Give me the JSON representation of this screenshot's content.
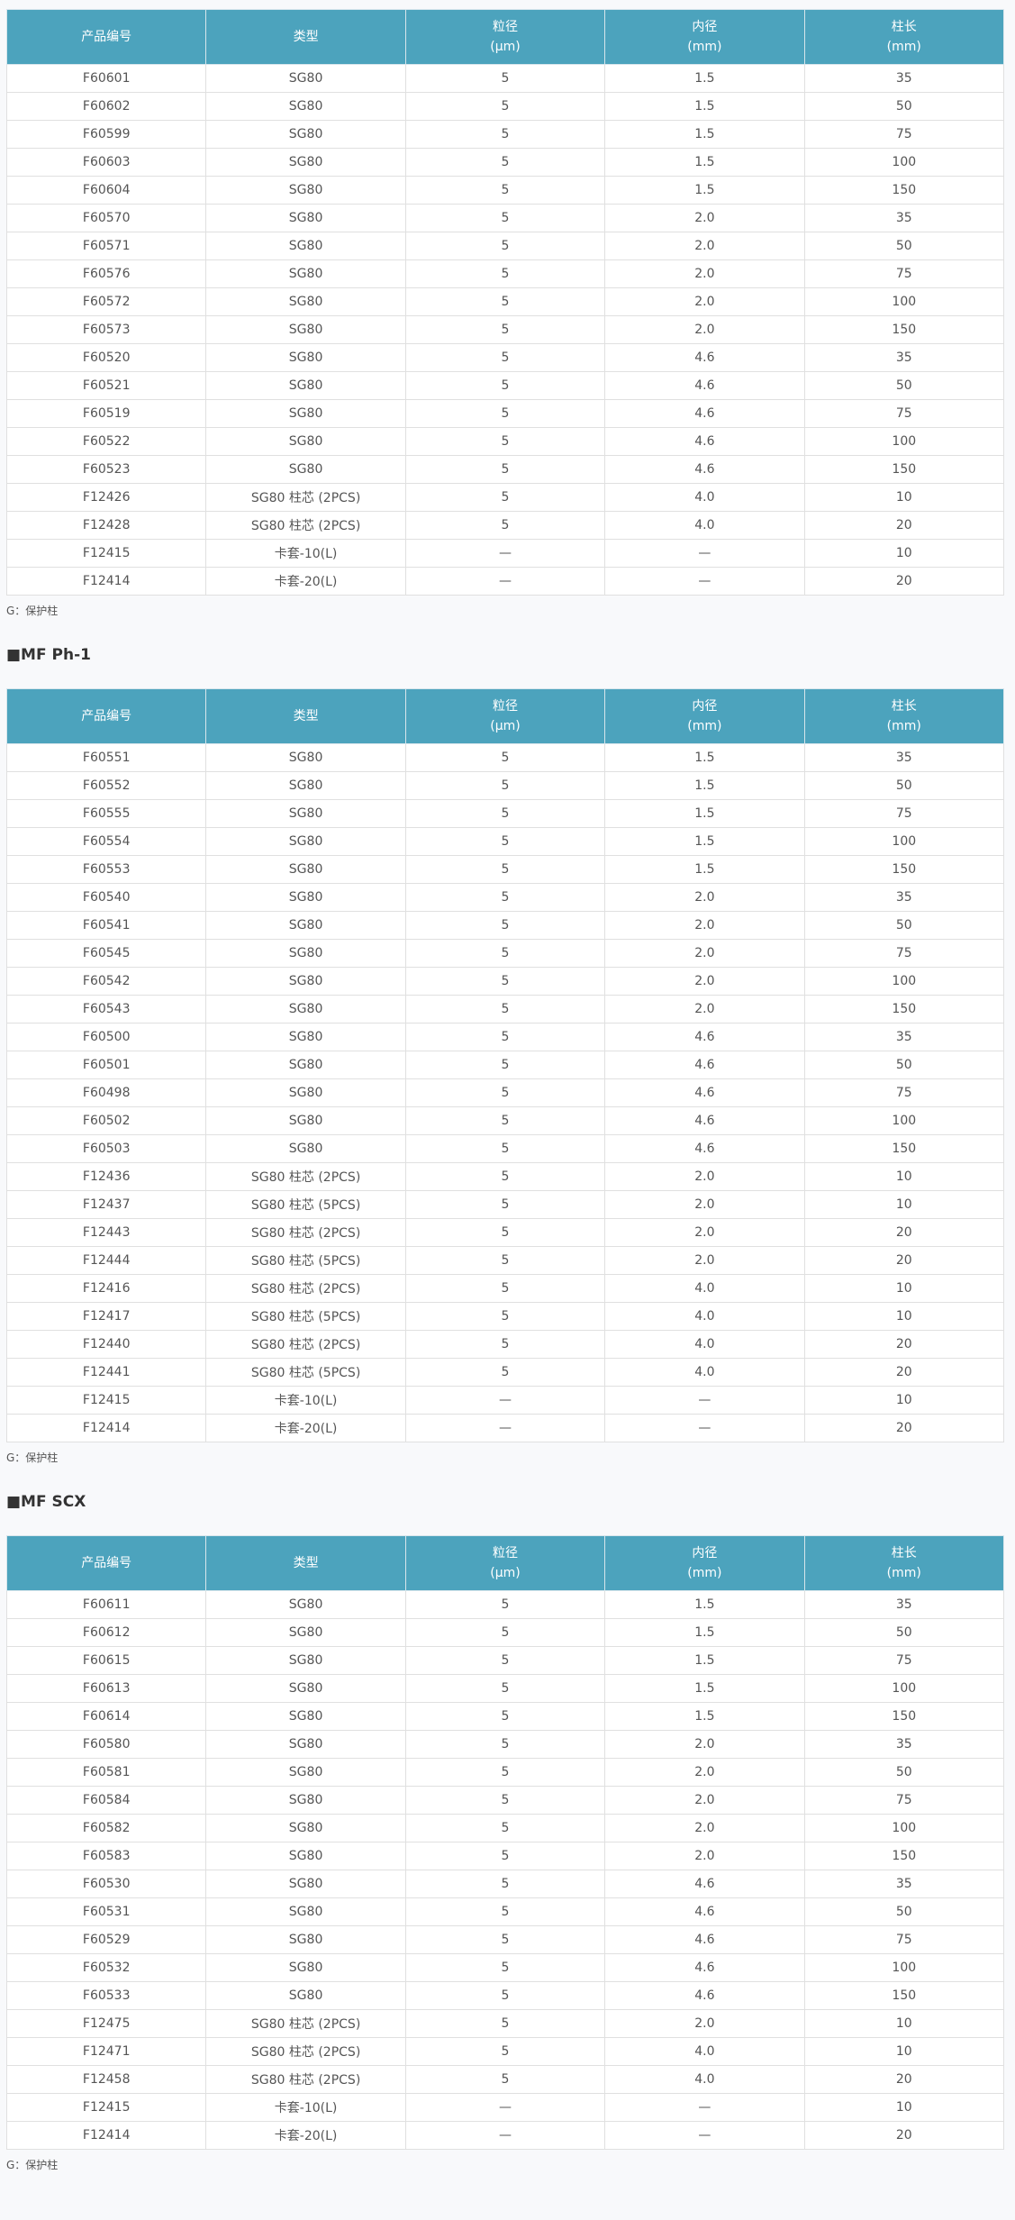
{
  "columns": [
    "产品编号",
    "类型",
    "粒径\n(μm)",
    "内径\n(mm)",
    "柱长\n(mm)"
  ],
  "note": "G：保护柱",
  "colors": {
    "header_bg": "#4ca3bd",
    "page_bg": "#f8f9fb"
  },
  "sections": [
    {
      "heading": "",
      "rows": [
        [
          "F60601",
          "SG80",
          "5",
          "1.5",
          "35"
        ],
        [
          "F60602",
          "SG80",
          "5",
          "1.5",
          "50"
        ],
        [
          "F60599",
          "SG80",
          "5",
          "1.5",
          "75"
        ],
        [
          "F60603",
          "SG80",
          "5",
          "1.5",
          "100"
        ],
        [
          "F60604",
          "SG80",
          "5",
          "1.5",
          "150"
        ],
        [
          "F60570",
          "SG80",
          "5",
          "2.0",
          "35"
        ],
        [
          "F60571",
          "SG80",
          "5",
          "2.0",
          "50"
        ],
        [
          "F60576",
          "SG80",
          "5",
          "2.0",
          "75"
        ],
        [
          "F60572",
          "SG80",
          "5",
          "2.0",
          "100"
        ],
        [
          "F60573",
          "SG80",
          "5",
          "2.0",
          "150"
        ],
        [
          "F60520",
          "SG80",
          "5",
          "4.6",
          "35"
        ],
        [
          "F60521",
          "SG80",
          "5",
          "4.6",
          "50"
        ],
        [
          "F60519",
          "SG80",
          "5",
          "4.6",
          "75"
        ],
        [
          "F60522",
          "SG80",
          "5",
          "4.6",
          "100"
        ],
        [
          "F60523",
          "SG80",
          "5",
          "4.6",
          "150"
        ],
        [
          "F12426",
          "SG80 柱芯 (2PCS)",
          "5",
          "4.0",
          "10"
        ],
        [
          "F12428",
          "SG80 柱芯 (2PCS)",
          "5",
          "4.0",
          "20"
        ],
        [
          "F12415",
          "卡套-10(L)",
          "—",
          "—",
          "10"
        ],
        [
          "F12414",
          "卡套-20(L)",
          "—",
          "—",
          "20"
        ]
      ]
    },
    {
      "heading": "■MF Ph-1",
      "rows": [
        [
          "F60551",
          "SG80",
          "5",
          "1.5",
          "35"
        ],
        [
          "F60552",
          "SG80",
          "5",
          "1.5",
          "50"
        ],
        [
          "F60555",
          "SG80",
          "5",
          "1.5",
          "75"
        ],
        [
          "F60554",
          "SG80",
          "5",
          "1.5",
          "100"
        ],
        [
          "F60553",
          "SG80",
          "5",
          "1.5",
          "150"
        ],
        [
          "F60540",
          "SG80",
          "5",
          "2.0",
          "35"
        ],
        [
          "F60541",
          "SG80",
          "5",
          "2.0",
          "50"
        ],
        [
          "F60545",
          "SG80",
          "5",
          "2.0",
          "75"
        ],
        [
          "F60542",
          "SG80",
          "5",
          "2.0",
          "100"
        ],
        [
          "F60543",
          "SG80",
          "5",
          "2.0",
          "150"
        ],
        [
          "F60500",
          "SG80",
          "5",
          "4.6",
          "35"
        ],
        [
          "F60501",
          "SG80",
          "5",
          "4.6",
          "50"
        ],
        [
          "F60498",
          "SG80",
          "5",
          "4.6",
          "75"
        ],
        [
          "F60502",
          "SG80",
          "5",
          "4.6",
          "100"
        ],
        [
          "F60503",
          "SG80",
          "5",
          "4.6",
          "150"
        ],
        [
          "F12436",
          "SG80 柱芯 (2PCS)",
          "5",
          "2.0",
          "10"
        ],
        [
          "F12437",
          "SG80 柱芯 (5PCS)",
          "5",
          "2.0",
          "10"
        ],
        [
          "F12443",
          "SG80 柱芯 (2PCS)",
          "5",
          "2.0",
          "20"
        ],
        [
          "F12444",
          "SG80 柱芯 (5PCS)",
          "5",
          "2.0",
          "20"
        ],
        [
          "F12416",
          "SG80 柱芯 (2PCS)",
          "5",
          "4.0",
          "10"
        ],
        [
          "F12417",
          "SG80 柱芯 (5PCS)",
          "5",
          "4.0",
          "10"
        ],
        [
          "F12440",
          "SG80 柱芯 (2PCS)",
          "5",
          "4.0",
          "20"
        ],
        [
          "F12441",
          "SG80 柱芯 (5PCS)",
          "5",
          "4.0",
          "20"
        ],
        [
          "F12415",
          "卡套-10(L)",
          "—",
          "—",
          "10"
        ],
        [
          "F12414",
          "卡套-20(L)",
          "—",
          "—",
          "20"
        ]
      ]
    },
    {
      "heading": "■MF SCX",
      "rows": [
        [
          "F60611",
          "SG80",
          "5",
          "1.5",
          "35"
        ],
        [
          "F60612",
          "SG80",
          "5",
          "1.5",
          "50"
        ],
        [
          "F60615",
          "SG80",
          "5",
          "1.5",
          "75"
        ],
        [
          "F60613",
          "SG80",
          "5",
          "1.5",
          "100"
        ],
        [
          "F60614",
          "SG80",
          "5",
          "1.5",
          "150"
        ],
        [
          "F60580",
          "SG80",
          "5",
          "2.0",
          "35"
        ],
        [
          "F60581",
          "SG80",
          "5",
          "2.0",
          "50"
        ],
        [
          "F60584",
          "SG80",
          "5",
          "2.0",
          "75"
        ],
        [
          "F60582",
          "SG80",
          "5",
          "2.0",
          "100"
        ],
        [
          "F60583",
          "SG80",
          "5",
          "2.0",
          "150"
        ],
        [
          "F60530",
          "SG80",
          "5",
          "4.6",
          "35"
        ],
        [
          "F60531",
          "SG80",
          "5",
          "4.6",
          "50"
        ],
        [
          "F60529",
          "SG80",
          "5",
          "4.6",
          "75"
        ],
        [
          "F60532",
          "SG80",
          "5",
          "4.6",
          "100"
        ],
        [
          "F60533",
          "SG80",
          "5",
          "4.6",
          "150"
        ],
        [
          "F12475",
          "SG80 柱芯 (2PCS)",
          "5",
          "2.0",
          "10"
        ],
        [
          "F12471",
          "SG80 柱芯 (2PCS)",
          "5",
          "4.0",
          "10"
        ],
        [
          "F12458",
          "SG80 柱芯 (2PCS)",
          "5",
          "4.0",
          "20"
        ],
        [
          "F12415",
          "卡套-10(L)",
          "—",
          "—",
          "10"
        ],
        [
          "F12414",
          "卡套-20(L)",
          "—",
          "—",
          "20"
        ]
      ]
    }
  ]
}
